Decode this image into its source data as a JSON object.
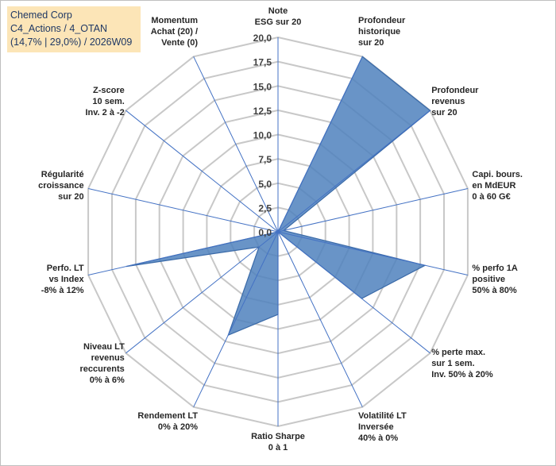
{
  "title_lines": [
    "Chemed Corp",
    "C4_Actions / 4_OTAN",
    "(14,7% | 29,0%) / 2026W09"
  ],
  "chart_data": {
    "type": "radar",
    "rmax": 20,
    "rings": 8,
    "tick_labels": [
      "0,0",
      "2,5",
      "5,0",
      "7,5",
      "10,0",
      "12,5",
      "15,0",
      "17,5",
      "20,0"
    ],
    "grid": true,
    "colors": {
      "fill": "#4f81bd",
      "stroke": "#3a6aa8",
      "grid": "#c8c8c8",
      "spoke": "#4472c4"
    },
    "axes": [
      {
        "label": [
          "Note",
          "ESG sur 20"
        ],
        "value": 0
      },
      {
        "label": [
          "Profondeur",
          "historique",
          "sur 20"
        ],
        "value": 20
      },
      {
        "label": [
          "Profondeur",
          "revenus",
          "sur 20"
        ],
        "value": 20
      },
      {
        "label": [
          "Capi. bours.",
          "en MdEUR",
          "0 à 60 G€"
        ],
        "value": 0.6
      },
      {
        "label": [
          "% perfo 1A",
          "positive",
          "50% à 80%"
        ],
        "value": 15.5
      },
      {
        "label": [
          "% perte max.",
          "sur 1 sem.",
          "Inv. 50% à 20%"
        ],
        "value": 11
      },
      {
        "label": [
          "Volatilité LT",
          "Inversée",
          "40% à 0%"
        ],
        "value": 0
      },
      {
        "label": [
          "Ratio Sharpe",
          "0 à 1"
        ],
        "value": 8.5
      },
      {
        "label": [
          "Rendement LT",
          "0% à 20%"
        ],
        "value": 11.8
      },
      {
        "label": [
          "Niveau LT",
          "revenus",
          "reccurents",
          "0% à 6%"
        ],
        "value": 2.5
      },
      {
        "label": [
          "Perfo. LT",
          "vs Index",
          "-8% à 12%"
        ],
        "value": 16
      },
      {
        "label": [
          "Régularité",
          "croissance",
          "sur 20"
        ],
        "value": 0
      },
      {
        "label": [
          "Z-score",
          "10 sem.",
          "Inv. 2 à -2"
        ],
        "value": 0
      },
      {
        "label": [
          "Momentum",
          "Achat (20) /",
          "Vente (0)"
        ],
        "value": 0
      }
    ]
  }
}
